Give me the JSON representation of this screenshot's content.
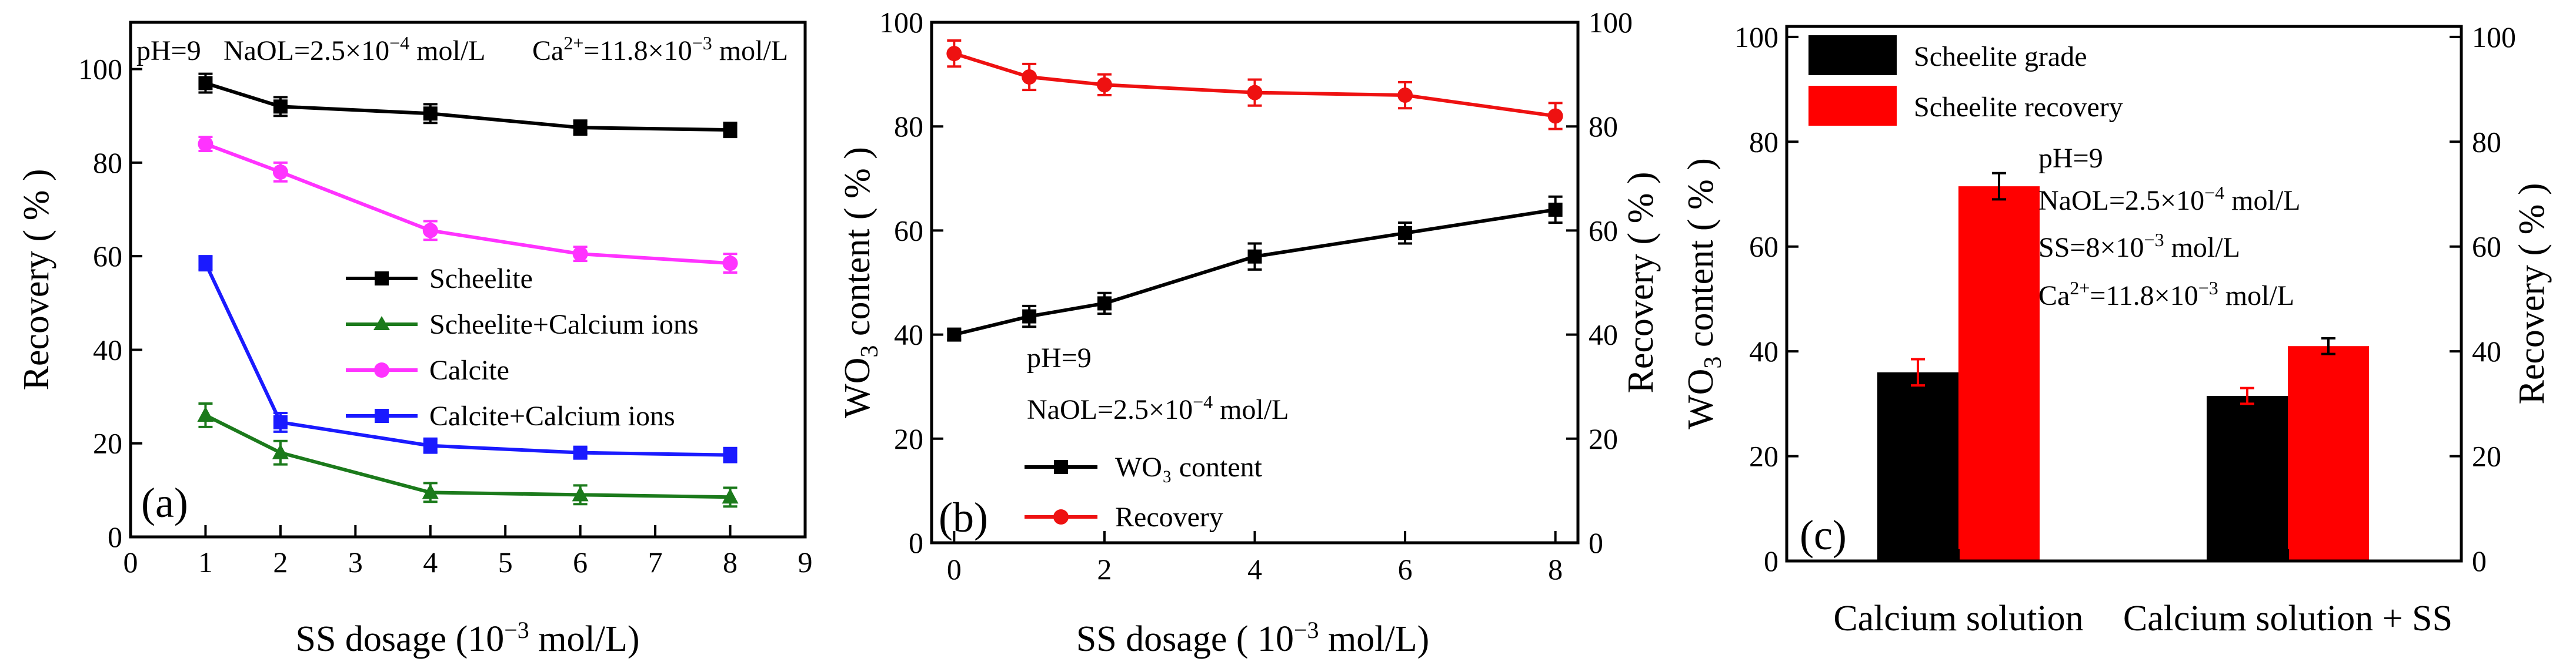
{
  "chart_data": [
    {
      "type": "line",
      "panel_label": "(a)",
      "annotation": {
        "pH": "pH=9",
        "naol_prefix": "NaOL=2.5×10",
        "naol_exp": "−4",
        "naol_suffix": " mol/L",
        "ca_prefix": "Ca",
        "ca_sup": "2+",
        "ca_mid": "=11.8×10",
        "ca_exp": "−3",
        "ca_suffix": " mol/L"
      },
      "xlabel_prefix": "SS dosage (10",
      "xlabel_exp": "−3",
      "xlabel_suffix": " mol/L)",
      "ylabel": "Recovery ( % )",
      "xlim": [
        0,
        9
      ],
      "ylim": [
        0,
        110
      ],
      "xticks": [
        "0",
        "1",
        "2",
        "3",
        "4",
        "5",
        "6",
        "7",
        "8",
        "9"
      ],
      "yticks": [
        "0",
        "20",
        "40",
        "60",
        "80",
        "100"
      ],
      "legend_position": "center-right",
      "series": [
        {
          "name": "Scheelite",
          "color": "#000000",
          "marker": "square",
          "x": [
            1,
            2,
            4,
            6,
            8
          ],
          "y": [
            97,
            92,
            90.5,
            87.5,
            87
          ],
          "err": [
            2,
            2,
            2,
            1.5,
            1.5
          ]
        },
        {
          "name": "Scheelite+Calcium ions",
          "color": "#1b7a1b",
          "marker": "triangle",
          "x": [
            1,
            2,
            4,
            6,
            8
          ],
          "y": [
            26,
            18,
            9.5,
            9,
            8.5
          ],
          "err": [
            2.5,
            2.5,
            2,
            2,
            2
          ]
        },
        {
          "name": "Calcite",
          "color": "#ff33ff",
          "marker": "circle",
          "x": [
            1,
            2,
            4,
            6,
            8
          ],
          "y": [
            84,
            78,
            65.5,
            60.5,
            58.5
          ],
          "err": [
            1.5,
            2,
            2,
            1.5,
            2
          ]
        },
        {
          "name": "Calcite+Calcium ions",
          "color": "#1a1aff",
          "marker": "square",
          "x": [
            1,
            2,
            4,
            6,
            8
          ],
          "y": [
            58.5,
            24.5,
            19.5,
            18,
            17.5
          ],
          "err": [
            1.5,
            2,
            1.5,
            1,
            1.5
          ]
        }
      ]
    },
    {
      "type": "line",
      "panel_label": "(b)",
      "annotation": {
        "pH": "pH=9",
        "naol_prefix": "NaOL=2.5×10",
        "naol_exp": "−4",
        "naol_suffix": " mol/L"
      },
      "xlabel_prefix": "SS dosage ( 10",
      "xlabel_exp": "−3",
      "xlabel_suffix": " mol/L)",
      "ylabel_left_prefix": "WO",
      "ylabel_left_sub": "3",
      "ylabel_left_suffix": " content ( % )",
      "ylabel_right": "Recovery ( % )",
      "xlim": [
        -0.3,
        8.3
      ],
      "ylim": [
        0,
        100
      ],
      "xticks": [
        "0",
        "2",
        "4",
        "6",
        "8"
      ],
      "yticks": [
        "0",
        "20",
        "40",
        "60",
        "80",
        "100"
      ],
      "legend_position": "bottom-center",
      "series": [
        {
          "name": "WO₃ content",
          "color": "#000000",
          "marker": "square",
          "x": [
            0,
            1,
            2,
            4,
            6,
            8
          ],
          "y": [
            40,
            43.5,
            46,
            55,
            59.5,
            64
          ],
          "err": [
            1,
            2,
            2,
            2.5,
            2,
            2.5
          ]
        },
        {
          "name": "Recovery",
          "color": "#ee1111",
          "marker": "circle",
          "x": [
            0,
            1,
            2,
            4,
            6,
            8
          ],
          "y": [
            94,
            89.5,
            88,
            86.5,
            86,
            82
          ],
          "err": [
            2.5,
            2.5,
            2,
            2.5,
            2.5,
            2.5
          ]
        }
      ]
    },
    {
      "type": "bar",
      "panel_label": "(c)",
      "annotation": {
        "pH": "pH=9",
        "naol_prefix": "NaOL=2.5×10",
        "naol_exp": "−4",
        "naol_suffix": " mol/L",
        "ss_prefix": "SS=8×10",
        "ss_exp": "−3",
        "ss_suffix": " mol/L",
        "ca_prefix": "Ca",
        "ca_sup": "2+",
        "ca_mid": "=11.8×10",
        "ca_exp": "−3",
        "ca_suffix": " mol/L"
      },
      "ylabel_left_prefix": "WO",
      "ylabel_left_sub": "3",
      "ylabel_left_suffix": " content ( % )",
      "ylabel_right": "Recovery ( % )",
      "ylim": [
        0,
        102
      ],
      "yticks": [
        "0",
        "20",
        "40",
        "60",
        "80",
        "100"
      ],
      "categories": [
        "Calcium solution",
        "Calcium solution + SS"
      ],
      "legend_position": "top-left",
      "series": [
        {
          "name": "Scheelite grade",
          "color": "#000000",
          "values": [
            36,
            31.5
          ],
          "err": [
            2.5,
            1.5
          ]
        },
        {
          "name": "Scheelite recovery",
          "color": "#ff0000",
          "values": [
            71.5,
            41
          ],
          "err": [
            2.5,
            1.5
          ]
        }
      ]
    }
  ]
}
